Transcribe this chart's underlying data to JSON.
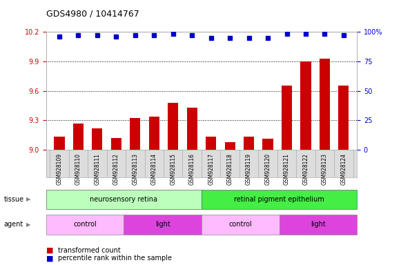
{
  "title": "GDS4980 / 10414767",
  "samples": [
    "GSM928109",
    "GSM928110",
    "GSM928111",
    "GSM928112",
    "GSM928113",
    "GSM928114",
    "GSM928115",
    "GSM928116",
    "GSM928117",
    "GSM928118",
    "GSM928119",
    "GSM928120",
    "GSM928121",
    "GSM928122",
    "GSM928123",
    "GSM928124"
  ],
  "red_values": [
    9.13,
    9.27,
    9.22,
    9.12,
    9.32,
    9.34,
    9.48,
    9.43,
    9.13,
    9.08,
    9.13,
    9.11,
    9.65,
    9.9,
    9.93,
    9.65
  ],
  "blue_pct": [
    96,
    97,
    97,
    96,
    97,
    97,
    98,
    97,
    95,
    95,
    95,
    95,
    98,
    98,
    98,
    97
  ],
  "ylim_left": [
    9.0,
    10.2
  ],
  "ylim_right": [
    0,
    100
  ],
  "yticks_left": [
    9.0,
    9.3,
    9.6,
    9.9,
    10.2
  ],
  "yticks_right": [
    0,
    25,
    50,
    75,
    100
  ],
  "tissue_labels": [
    {
      "label": "neurosensory retina",
      "start": 0,
      "end": 7,
      "color": "#bbffbb"
    },
    {
      "label": "retinal pigment epithelium",
      "start": 8,
      "end": 15,
      "color": "#44ee44"
    }
  ],
  "agent_labels": [
    {
      "label": "control",
      "start": 0,
      "end": 3,
      "color": "#ffbbff"
    },
    {
      "label": "light",
      "start": 4,
      "end": 7,
      "color": "#dd44dd"
    },
    {
      "label": "control",
      "start": 8,
      "end": 11,
      "color": "#ffbbff"
    },
    {
      "label": "light",
      "start": 12,
      "end": 15,
      "color": "#dd44dd"
    }
  ],
  "bar_color": "#cc0000",
  "dot_color": "#0000cc",
  "grid_color": "#000000",
  "left_tick_color": "#cc0000",
  "right_tick_color": "#0000cc",
  "bg_color": "#ffffff",
  "legend_items": [
    {
      "label": "transformed count",
      "color": "#cc0000"
    },
    {
      "label": "percentile rank within the sample",
      "color": "#0000cc"
    }
  ]
}
